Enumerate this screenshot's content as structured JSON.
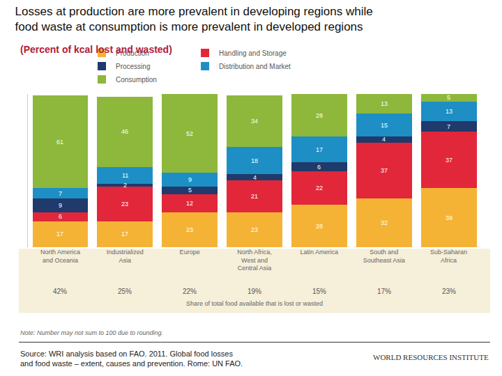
{
  "chart_data": {
    "type": "bar",
    "title": "Losses at production are more prevalent in developing regions while food waste at consumption is more prevalent in developed regions",
    "subtitle": "(Percent of kcal lost and wasted)",
    "categories": [
      "North America and Oceania",
      "Industrialized Asia",
      "Europe",
      "North Africa, West and Central Asia",
      "Latin America",
      "South and Southeast Asia",
      "Sub-Saharan Africa"
    ],
    "series": [
      {
        "name": "Production",
        "color": "#f5b335",
        "values": [
          17,
          17,
          23,
          23,
          28,
          32,
          39
        ]
      },
      {
        "name": "Handling and Storage",
        "color": "#e2273b",
        "values": [
          6,
          23,
          12,
          21,
          22,
          37,
          37
        ]
      },
      {
        "name": "Processing",
        "color": "#1f3a6b",
        "values": [
          9,
          2,
          5,
          4,
          6,
          4,
          7
        ]
      },
      {
        "name": "Distribution and Market",
        "color": "#1d8fc4",
        "values": [
          7,
          11,
          9,
          18,
          17,
          15,
          13
        ]
      },
      {
        "name": "Consumption",
        "color": "#8db83c",
        "values": [
          61,
          46,
          52,
          34,
          28,
          13,
          5
        ]
      }
    ],
    "stacked": true,
    "data_labels": true,
    "ylim": [
      0,
      101
    ],
    "yticks": [],
    "tick_labels": "x",
    "grid": false,
    "legend": "top",
    "share_row": {
      "label": "Share of total food available that is lost or wasted",
      "values": [
        42,
        25,
        22,
        19,
        15,
        17,
        23
      ],
      "value_labels": [
        "42%",
        "25%",
        "22%",
        "19%",
        "15%",
        "17%",
        "23%"
      ]
    },
    "note": "Note: Number may not sum to 100 due to rounding.",
    "source": "Source: WRI analysis based on FAO. 2011. Global food losses and food waste – extent, causes and prevention. Rome: UN FAO.",
    "logo": "WORLD RESOURCES INSTITUTE"
  }
}
